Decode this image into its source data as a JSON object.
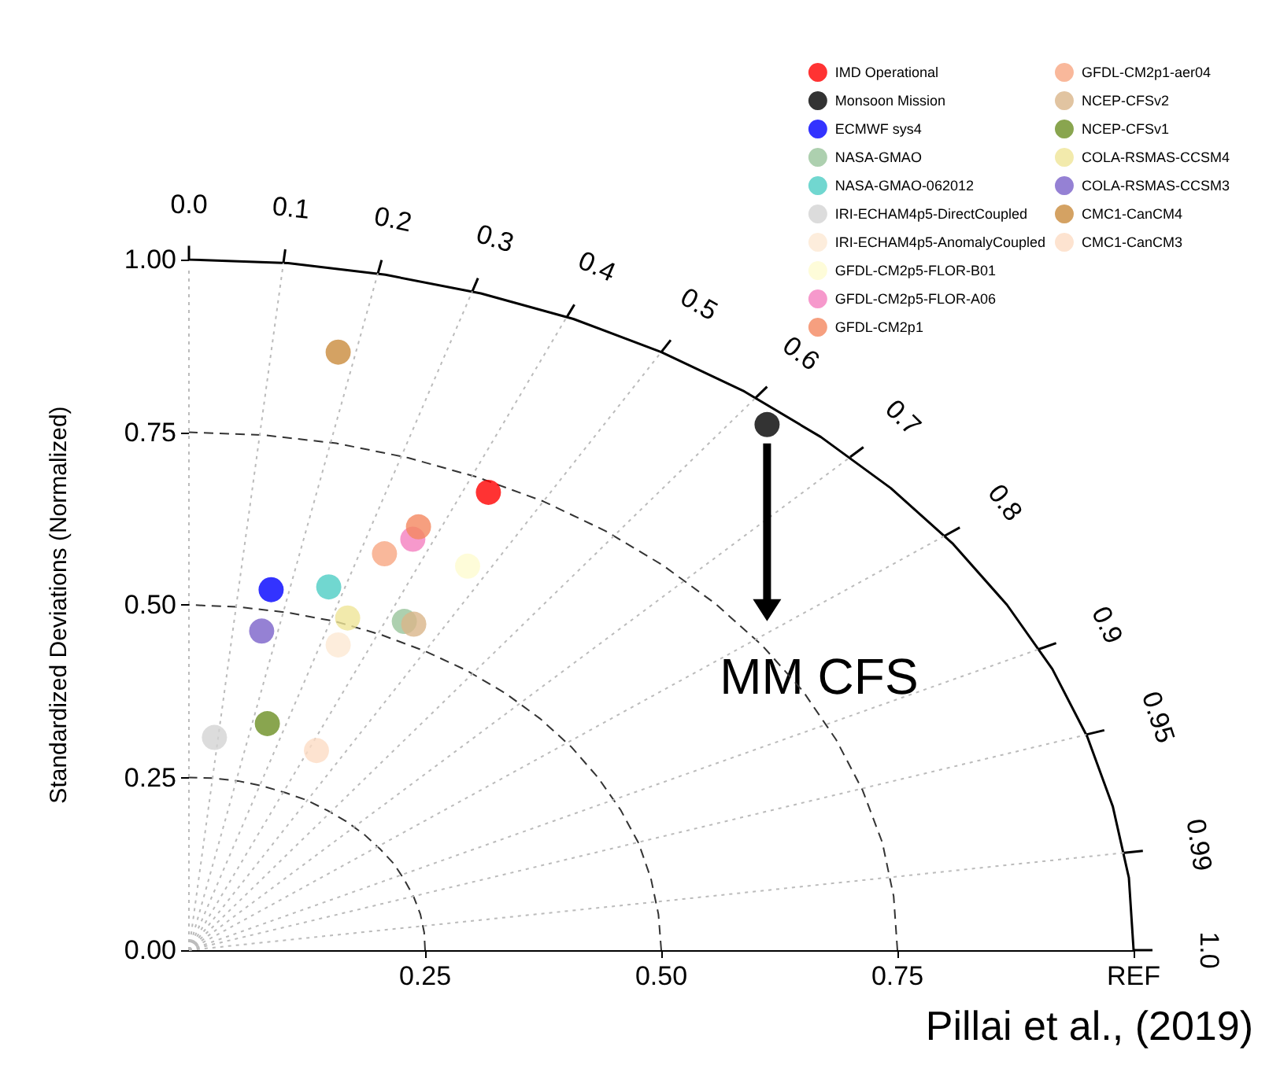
{
  "chart_data": {
    "type": "scatter",
    "ylabel": "Standardized Deviations (Normalized)",
    "xlim": [
      0,
      1
    ],
    "ylim": [
      0,
      1
    ],
    "xticks": [
      {
        "value": 0.25,
        "label": "0.25"
      },
      {
        "value": 0.5,
        "label": "0.50"
      },
      {
        "value": 0.75,
        "label": "0.75"
      },
      {
        "value": 1,
        "label": "REF"
      }
    ],
    "yticks": [
      {
        "value": 0,
        "label": "0.00"
      },
      {
        "value": 0.25,
        "label": "0.25"
      },
      {
        "value": 0.5,
        "label": "0.50"
      },
      {
        "value": 0.75,
        "label": "0.75"
      },
      {
        "value": 1,
        "label": "1.00"
      }
    ],
    "legend": "top right",
    "marker": "circle",
    "series": [
      {
        "type": "line",
        "marker": "none",
        "color": "#333333",
        "line_style": "dashed",
        "x": [
          0.25,
          0.249,
          0.245,
          0.238,
          0.228,
          0.217,
          0.202,
          0.186,
          0.167,
          0.147,
          0.125,
          0.102,
          0.077,
          0.052,
          0.026,
          0
        ],
        "values": [
          0,
          0.026,
          0.052,
          0.077,
          0.102,
          0.125,
          0.147,
          0.167,
          0.186,
          0.202,
          0.217,
          0.228,
          0.238,
          0.245,
          0.249,
          0.25
        ]
      },
      {
        "type": "line",
        "marker": "none",
        "color": "#333333",
        "line_style": "dashed",
        "x": [
          0.5,
          0.497,
          0.489,
          0.476,
          0.457,
          0.433,
          0.405,
          0.372,
          0.335,
          0.294,
          0.25,
          0.203,
          0.155,
          0.104,
          0.052,
          0
        ],
        "values": [
          0,
          0.052,
          0.104,
          0.155,
          0.203,
          0.25,
          0.294,
          0.335,
          0.372,
          0.405,
          0.433,
          0.457,
          0.476,
          0.489,
          0.497,
          0.5
        ]
      },
      {
        "type": "line",
        "marker": "none",
        "color": "#333333",
        "line_style": "dashed",
        "x": [
          0.75,
          0.746,
          0.734,
          0.713,
          0.685,
          0.65,
          0.607,
          0.557,
          0.502,
          0.441,
          0.375,
          0.305,
          0.232,
          0.156,
          0.078,
          0
        ],
        "values": [
          0,
          0.078,
          0.156,
          0.232,
          0.305,
          0.375,
          0.441,
          0.502,
          0.557,
          0.607,
          0.65,
          0.685,
          0.713,
          0.734,
          0.746,
          0.75
        ]
      },
      {
        "type": "line",
        "marker": "none",
        "color": "#000000",
        "line_style": "solid",
        "x": [
          1,
          0.995,
          0.978,
          0.951,
          0.914,
          0.866,
          0.809,
          0.743,
          0.669,
          0.588,
          0.5,
          0.407,
          0.309,
          0.208,
          0.105,
          0
        ],
        "values": [
          0,
          0.105,
          0.208,
          0.309,
          0.407,
          0.5,
          0.588,
          0.669,
          0.743,
          0.809,
          0.866,
          0.914,
          0.951,
          0.978,
          0.995,
          1
        ]
      },
      {
        "type": "line",
        "marker": "none",
        "color": "#bbbbbb",
        "line_style": "dotted",
        "x": [
          0,
          0,
          0
        ],
        "values": [
          0,
          0.5,
          0.99
        ]
      },
      {
        "type": "line",
        "marker": "none",
        "color": "#bbbbbb",
        "line_style": "dotted",
        "x": [
          0,
          0.05,
          0.1
        ],
        "values": [
          0,
          0.498,
          0.995
        ]
      },
      {
        "type": "line",
        "marker": "none",
        "color": "#bbbbbb",
        "line_style": "dotted",
        "x": [
          0,
          0.1,
          0.2
        ],
        "values": [
          0,
          0.49,
          0.98
        ]
      },
      {
        "type": "line",
        "marker": "none",
        "color": "#bbbbbb",
        "line_style": "dotted",
        "x": [
          0,
          0.15,
          0.3
        ],
        "values": [
          0,
          0.477,
          0.954
        ]
      },
      {
        "type": "line",
        "marker": "none",
        "color": "#bbbbbb",
        "line_style": "dotted",
        "x": [
          0,
          0.2,
          0.4
        ],
        "values": [
          0,
          0.458,
          0.917
        ]
      },
      {
        "type": "line",
        "marker": "none",
        "color": "#bbbbbb",
        "line_style": "dotted",
        "x": [
          0,
          0.25,
          0.5
        ],
        "values": [
          0,
          0.433,
          0.866
        ]
      },
      {
        "type": "line",
        "marker": "none",
        "color": "#bbbbbb",
        "line_style": "dotted",
        "x": [
          0,
          0.3,
          0.6
        ],
        "values": [
          0,
          0.4,
          0.8
        ]
      },
      {
        "type": "line",
        "marker": "none",
        "color": "#bbbbbb",
        "line_style": "dotted",
        "x": [
          0,
          0.35,
          0.7
        ],
        "values": [
          0,
          0.357,
          0.714
        ]
      },
      {
        "type": "line",
        "marker": "none",
        "color": "#bbbbbb",
        "line_style": "dotted",
        "x": [
          0,
          0.4,
          0.8
        ],
        "values": [
          0,
          0.3,
          0.6
        ]
      },
      {
        "type": "line",
        "marker": "none",
        "color": "#bbbbbb",
        "line_style": "dotted",
        "x": [
          0,
          0.45,
          0.9
        ],
        "values": [
          0,
          0.218,
          0.436
        ]
      },
      {
        "type": "line",
        "marker": "none",
        "color": "#bbbbbb",
        "line_style": "dotted",
        "x": [
          0,
          0.475,
          0.95
        ],
        "values": [
          0,
          0.156,
          0.312
        ]
      },
      {
        "type": "line",
        "marker": "none",
        "color": "#bbbbbb",
        "line_style": "dotted",
        "x": [
          0,
          0.495,
          0.99
        ],
        "values": [
          0,
          0.07,
          0.141
        ]
      },
      {
        "name": "IMD Operational",
        "color": "#ff0000",
        "x": [
          0.317
        ],
        "values": [
          0.663
        ]
      },
      {
        "name": "Monsoon Mission",
        "color": "#000000",
        "x": [
          0.612
        ],
        "values": [
          0.761
        ]
      },
      {
        "name": "ECMWF sys4",
        "color": "#0000ff",
        "x": [
          0.087
        ],
        "values": [
          0.522
        ]
      },
      {
        "name": "NASA-GMAO",
        "color": "#98c49b",
        "x": [
          0.228
        ],
        "values": [
          0.476
        ]
      },
      {
        "name": "NASA-GMAO-062012",
        "color": "#4ecdc4",
        "x": [
          0.148
        ],
        "values": [
          0.526
        ]
      },
      {
        "name": "IRI-ECHAM4p5-DirectCoupled",
        "color": "#d3d3d3",
        "x": [
          0.027
        ],
        "values": [
          0.308
        ]
      },
      {
        "name": "IRI-ECHAM4p5-AnomalyCoupled",
        "color": "#fde9d3",
        "x": [
          0.158
        ],
        "values": [
          0.442
        ]
      },
      {
        "name": "GFDL-CM2p5-FLOR-B01",
        "color": "#fefbd0",
        "x": [
          0.295
        ],
        "values": [
          0.556
        ]
      },
      {
        "name": "GFDL-CM2p5-FLOR-A06",
        "color": "#f47fbf",
        "x": [
          0.237
        ],
        "values": [
          0.595
        ]
      },
      {
        "name": "GFDL-CM2p1",
        "color": "#f4875f",
        "x": [
          0.243
        ],
        "values": [
          0.613
        ]
      },
      {
        "name": "GFDL-CM2p1-aer04",
        "color": "#f8a682",
        "x": [
          0.207
        ],
        "values": [
          0.574
        ]
      },
      {
        "name": "NCEP-CFSv2",
        "color": "#d9b58a",
        "x": [
          0.238
        ],
        "values": [
          0.472
        ]
      },
      {
        "name": "NCEP-CFSv1",
        "color": "#6b8e23",
        "x": [
          0.083
        ],
        "values": [
          0.328
        ]
      },
      {
        "name": "COLA-RSMAS-CCSM4",
        "color": "#efe597",
        "x": [
          0.168
        ],
        "values": [
          0.481
        ]
      },
      {
        "name": "COLA-RSMAS-CCSM3",
        "color": "#7a62c9",
        "x": [
          0.077
        ],
        "values": [
          0.462
        ]
      },
      {
        "name": "CMC1-CanCM4",
        "color": "#c98b3c",
        "x": [
          0.158
        ],
        "values": [
          0.866
        ]
      },
      {
        "name": "CMC1-CanCM3",
        "color": "#fcdcc4",
        "x": [
          0.135
        ],
        "values": [
          0.289
        ]
      }
    ],
    "annotations": [
      "0.0",
      "0.1",
      "0.2",
      "0.3",
      "0.4",
      "0.5",
      "0.6",
      "0.7",
      "0.8",
      "0.9",
      "0.95",
      "0.99",
      "1.0",
      "MM CFS",
      "Pillai et al., (2019)"
    ]
  }
}
